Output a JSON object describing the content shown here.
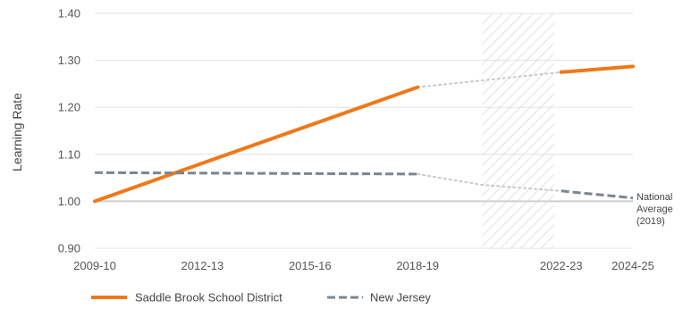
{
  "chart_data": {
    "type": "line",
    "ylabel": "Learning Rate",
    "ylim": [
      0.9,
      1.4
    ],
    "yticks": [
      "0.90",
      "1.00",
      "1.10",
      "1.20",
      "1.30",
      "1.40"
    ],
    "x_ticks": [
      "2009-10",
      "2012-13",
      "2015-16",
      "2018-19",
      "2022-23",
      "2024-25"
    ],
    "x_start": 2009,
    "x_end": 2024,
    "gap_region": [
      2019.8,
      2021.8
    ],
    "reference_line": {
      "value": 1.0,
      "label_lines": [
        "National",
        "Average",
        "(2019)"
      ]
    },
    "series": [
      {
        "name": "Saddle Brook School District",
        "color": "#f07818",
        "solid": [
          [
            [
              2009,
              1.0
            ],
            [
              2018,
              1.243
            ]
          ],
          [
            [
              2022,
              1.275
            ],
            [
              2024,
              1.287
            ]
          ]
        ],
        "dotted": [
          [
            2018,
            1.243
          ],
          [
            2022,
            1.275
          ]
        ]
      },
      {
        "name": "New Jersey",
        "color": "#7a8590",
        "solid": [
          [
            [
              2009,
              1.061
            ],
            [
              2018,
              1.058
            ]
          ],
          [
            [
              2022,
              1.022
            ],
            [
              2024,
              1.007
            ]
          ]
        ],
        "dotted": [
          [
            2018,
            1.058
          ],
          [
            2019.8,
            1.035
          ],
          [
            2022,
            1.022
          ]
        ]
      }
    ],
    "legend": [
      "Saddle Brook School District",
      "New Jersey"
    ]
  }
}
